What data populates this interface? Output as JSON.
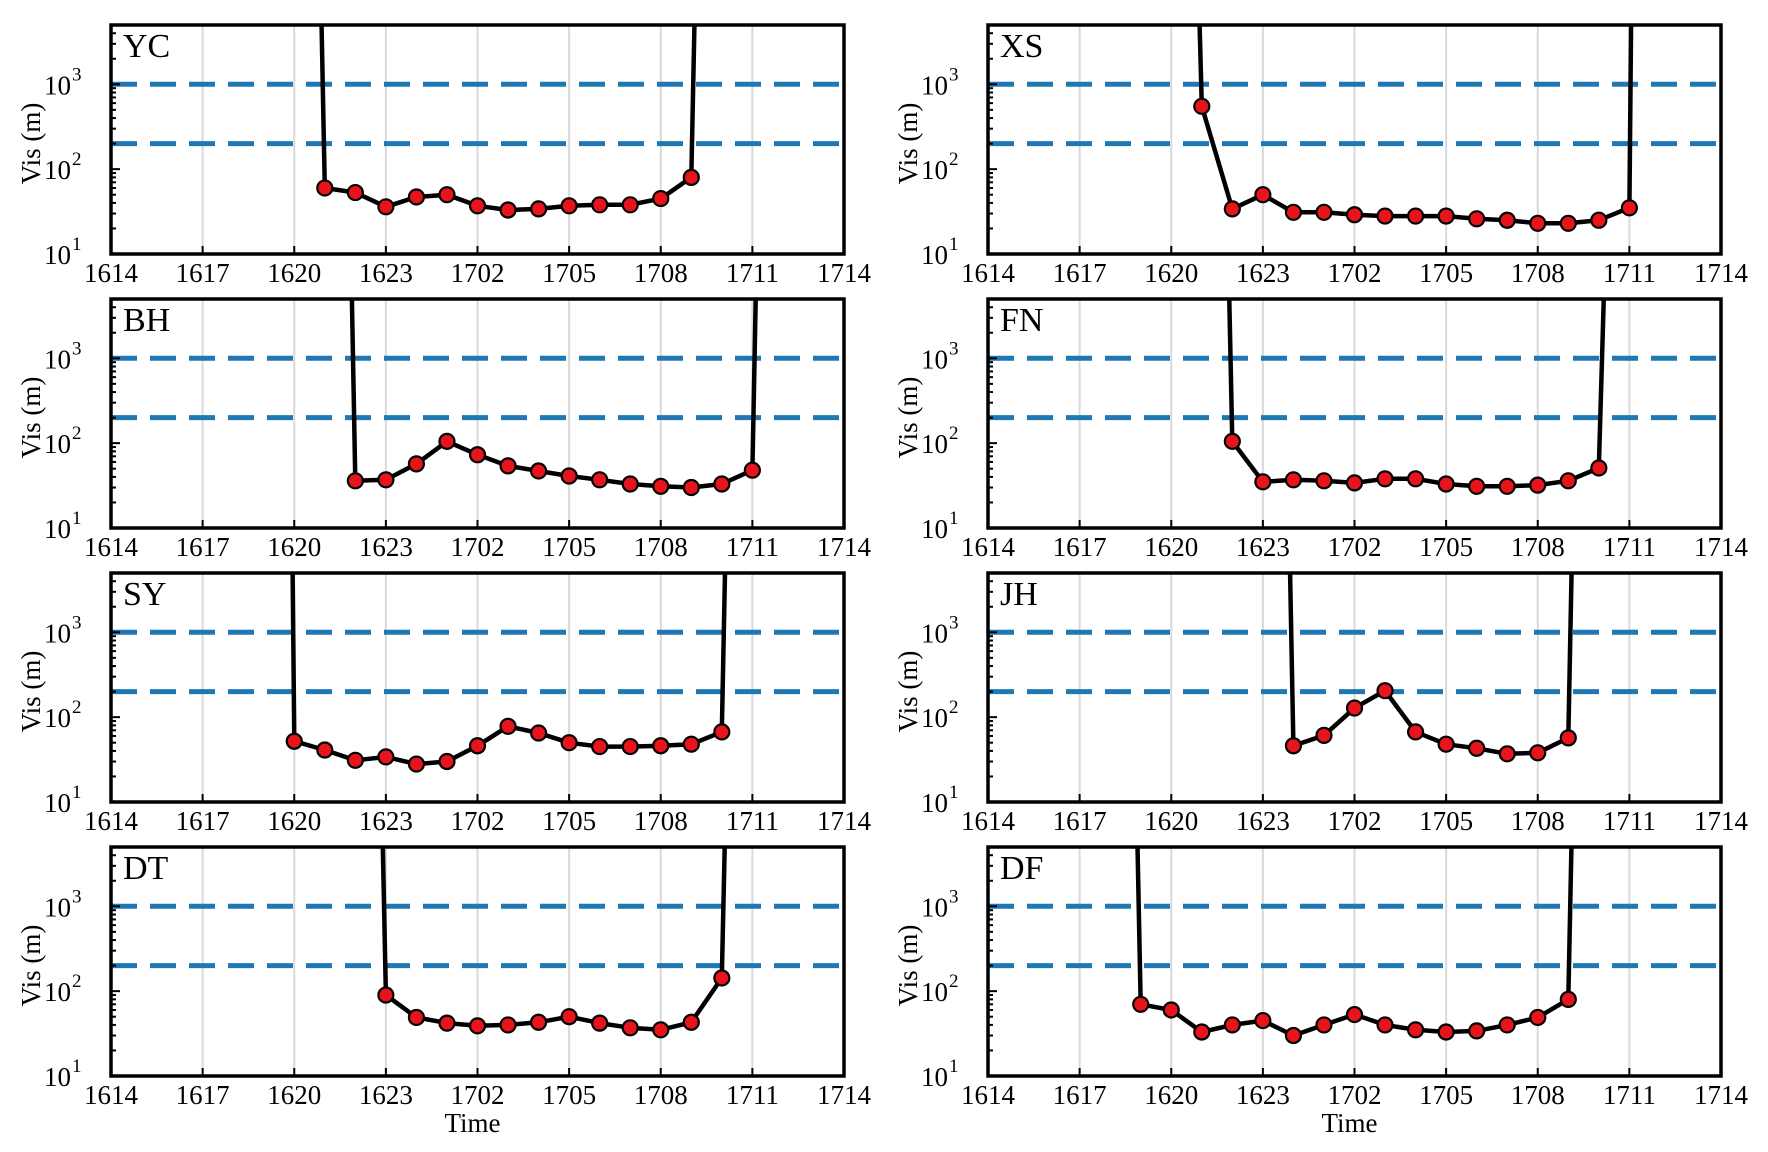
{
  "figure": {
    "ylabel": "Vis (m)",
    "xlabel": "Time",
    "x_tick_labels": [
      "1614",
      "1617",
      "1620",
      "1623",
      "1702",
      "1705",
      "1708",
      "1711",
      "1714"
    ],
    "y_tick_labels": [
      {
        "base": "10",
        "exp": "1"
      },
      {
        "base": "10",
        "exp": "2"
      },
      {
        "base": "10",
        "exp": "3"
      }
    ],
    "colors": {
      "series_line": "#000000",
      "marker_fill": "#e8141c",
      "marker_edge": "#000000",
      "threshold_line": "#1f77b4",
      "grid": "#d9d9d9"
    }
  },
  "chart_data": [
    {
      "type": "line",
      "panel": "YC",
      "title": "YC",
      "y_scale": "log",
      "ylim": [
        10,
        5000
      ],
      "xlim_index": [
        0,
        24
      ],
      "x_ticks_index": [
        0,
        3,
        6,
        9,
        12,
        15,
        18,
        21,
        24
      ],
      "x_tick_labels": [
        "1614",
        "1617",
        "1620",
        "1623",
        "1702",
        "1705",
        "1708",
        "1711",
        "1714"
      ],
      "thresholds": [
        1000,
        200
      ],
      "grid_x": true,
      "entry_x": 6.8,
      "exit_x": 19.2,
      "points": [
        [
          7,
          60
        ],
        [
          8,
          53
        ],
        [
          9,
          36
        ],
        [
          10,
          47
        ],
        [
          11,
          50
        ],
        [
          12,
          37
        ],
        [
          13,
          33
        ],
        [
          14,
          34
        ],
        [
          15,
          37
        ],
        [
          16,
          38
        ],
        [
          17,
          38
        ],
        [
          18,
          45
        ],
        [
          19,
          80
        ]
      ]
    },
    {
      "type": "line",
      "panel": "XS",
      "title": "XS",
      "y_scale": "log",
      "ylim": [
        10,
        5000
      ],
      "xlim_index": [
        0,
        24
      ],
      "x_ticks_index": [
        0,
        3,
        6,
        9,
        12,
        15,
        18,
        21,
        24
      ],
      "x_tick_labels": [
        "1614",
        "1617",
        "1620",
        "1623",
        "1702",
        "1705",
        "1708",
        "1711",
        "1714"
      ],
      "thresholds": [
        1000,
        200
      ],
      "grid_x": true,
      "entry_x": 6.8,
      "exit_x": 21.1,
      "points": [
        [
          7,
          550
        ],
        [
          8,
          34
        ],
        [
          9,
          50
        ],
        [
          10,
          31
        ],
        [
          11,
          31
        ],
        [
          12,
          29
        ],
        [
          13,
          28
        ],
        [
          14,
          28
        ],
        [
          15,
          28
        ],
        [
          16,
          26
        ],
        [
          17,
          25
        ],
        [
          18,
          23
        ],
        [
          19,
          23
        ],
        [
          20,
          25
        ],
        [
          21,
          35
        ]
      ]
    },
    {
      "type": "line",
      "panel": "BH",
      "title": "BH",
      "y_scale": "log",
      "ylim": [
        10,
        5000
      ],
      "xlim_index": [
        0,
        24
      ],
      "x_ticks_index": [
        0,
        3,
        6,
        9,
        12,
        15,
        18,
        21,
        24
      ],
      "x_tick_labels": [
        "1614",
        "1617",
        "1620",
        "1623",
        "1702",
        "1705",
        "1708",
        "1711",
        "1714"
      ],
      "thresholds": [
        1000,
        200
      ],
      "grid_x": true,
      "entry_x": 7.8,
      "exit_x": 21.2,
      "points": [
        [
          8,
          36
        ],
        [
          9,
          37
        ],
        [
          10,
          57
        ],
        [
          11,
          105
        ],
        [
          12,
          73
        ],
        [
          13,
          54
        ],
        [
          14,
          47
        ],
        [
          15,
          41
        ],
        [
          16,
          37
        ],
        [
          17,
          33
        ],
        [
          18,
          31
        ],
        [
          19,
          30
        ],
        [
          20,
          33
        ],
        [
          21,
          48
        ]
      ]
    },
    {
      "type": "line",
      "panel": "FN",
      "title": "FN",
      "y_scale": "log",
      "ylim": [
        10,
        5000
      ],
      "xlim_index": [
        0,
        24
      ],
      "x_ticks_index": [
        0,
        3,
        6,
        9,
        12,
        15,
        18,
        21,
        24
      ],
      "x_tick_labels": [
        "1614",
        "1617",
        "1620",
        "1623",
        "1702",
        "1705",
        "1708",
        "1711",
        "1714"
      ],
      "thresholds": [
        1000,
        200
      ],
      "grid_x": true,
      "entry_x": 7.8,
      "exit_x": 20.3,
      "points": [
        [
          8,
          105
        ],
        [
          9,
          35
        ],
        [
          10,
          37
        ],
        [
          11,
          36
        ],
        [
          12,
          34
        ],
        [
          13,
          38
        ],
        [
          14,
          38
        ],
        [
          15,
          33
        ],
        [
          16,
          31
        ],
        [
          17,
          31
        ],
        [
          18,
          32
        ],
        [
          19,
          36
        ],
        [
          20,
          51
        ]
      ]
    },
    {
      "type": "line",
      "panel": "SY",
      "title": "SY",
      "y_scale": "log",
      "ylim": [
        10,
        5000
      ],
      "xlim_index": [
        0,
        24
      ],
      "x_ticks_index": [
        0,
        3,
        6,
        9,
        12,
        15,
        18,
        21,
        24
      ],
      "x_tick_labels": [
        "1614",
        "1617",
        "1620",
        "1623",
        "1702",
        "1705",
        "1708",
        "1711",
        "1714"
      ],
      "thresholds": [
        1000,
        200
      ],
      "grid_x": true,
      "entry_x": 5.9,
      "exit_x": 20.2,
      "points": [
        [
          6,
          52
        ],
        [
          7,
          41
        ],
        [
          8,
          31
        ],
        [
          9,
          34
        ],
        [
          10,
          28
        ],
        [
          11,
          30
        ],
        [
          12,
          46
        ],
        [
          13,
          78
        ],
        [
          14,
          65
        ],
        [
          15,
          50
        ],
        [
          16,
          45
        ],
        [
          17,
          45
        ],
        [
          18,
          46
        ],
        [
          19,
          48
        ],
        [
          20,
          67
        ]
      ]
    },
    {
      "type": "line",
      "panel": "JH",
      "title": "JH",
      "y_scale": "log",
      "ylim": [
        10,
        5000
      ],
      "xlim_index": [
        0,
        24
      ],
      "x_ticks_index": [
        0,
        3,
        6,
        9,
        12,
        15,
        18,
        21,
        24
      ],
      "x_tick_labels": [
        "1614",
        "1617",
        "1620",
        "1623",
        "1702",
        "1705",
        "1708",
        "1711",
        "1714"
      ],
      "thresholds": [
        1000,
        200
      ],
      "grid_x": true,
      "entry_x": 9.8,
      "exit_x": 19.2,
      "points": [
        [
          10,
          46
        ],
        [
          11,
          61
        ],
        [
          12,
          128
        ],
        [
          13,
          205
        ],
        [
          14,
          67
        ],
        [
          15,
          48
        ],
        [
          16,
          43
        ],
        [
          17,
          37
        ],
        [
          18,
          38
        ],
        [
          19,
          57
        ]
      ]
    },
    {
      "type": "line",
      "panel": "DT",
      "title": "DT",
      "y_scale": "log",
      "ylim": [
        10,
        5000
      ],
      "xlim_index": [
        0,
        24
      ],
      "x_ticks_index": [
        0,
        3,
        6,
        9,
        12,
        15,
        18,
        21,
        24
      ],
      "x_tick_labels": [
        "1614",
        "1617",
        "1620",
        "1623",
        "1702",
        "1705",
        "1708",
        "1711",
        "1714"
      ],
      "thresholds": [
        1000,
        200
      ],
      "grid_x": true,
      "entry_x": 8.8,
      "exit_x": 20.2,
      "points": [
        [
          9,
          90
        ],
        [
          10,
          49
        ],
        [
          11,
          42
        ],
        [
          12,
          39
        ],
        [
          13,
          40
        ],
        [
          14,
          43
        ],
        [
          15,
          50
        ],
        [
          16,
          42
        ],
        [
          17,
          37
        ],
        [
          18,
          35
        ],
        [
          19,
          43
        ],
        [
          20,
          143
        ]
      ]
    },
    {
      "type": "line",
      "panel": "DF",
      "title": "DF",
      "y_scale": "log",
      "ylim": [
        10,
        5000
      ],
      "xlim_index": [
        0,
        24
      ],
      "x_ticks_index": [
        0,
        3,
        6,
        9,
        12,
        15,
        18,
        21,
        24
      ],
      "x_tick_labels": [
        "1614",
        "1617",
        "1620",
        "1623",
        "1702",
        "1705",
        "1708",
        "1711",
        "1714"
      ],
      "thresholds": [
        1000,
        200
      ],
      "grid_x": true,
      "entry_x": 4.8,
      "exit_x": 19.2,
      "points": [
        [
          5,
          70
        ],
        [
          6,
          60
        ],
        [
          7,
          33
        ],
        [
          8,
          40
        ],
        [
          9,
          45
        ],
        [
          10,
          30
        ],
        [
          11,
          40
        ],
        [
          12,
          53
        ],
        [
          13,
          40
        ],
        [
          14,
          35
        ],
        [
          15,
          33
        ],
        [
          16,
          34
        ],
        [
          17,
          40
        ],
        [
          18,
          49
        ],
        [
          19,
          80
        ]
      ]
    }
  ]
}
